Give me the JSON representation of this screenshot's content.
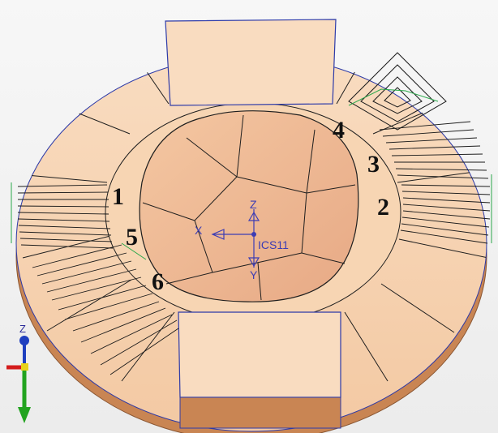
{
  "viewport": {
    "model": "circular-fixture-with-toolpaths",
    "colors": {
      "part_face": "#f6d2ae",
      "part_face_light": "#f9dcc0",
      "part_side": "#c98553",
      "pocket_floor": "#ecb08a",
      "pocket_wall": "#f1c39f",
      "edge": "#1e1e1e",
      "boundary_blue": "#2d3aa8",
      "toolpath": "#1a1a1a",
      "toolpath_marker": "#2aa84a"
    }
  },
  "zone_labels": [
    "1",
    "2",
    "3",
    "4",
    "5",
    "6"
  ],
  "csys": {
    "name": "ICS11",
    "axis_x": "X",
    "axis_y": "Y",
    "axis_z": "Z"
  },
  "triad": {
    "axis_z": "Z",
    "colors": {
      "z": "#1f3fbf",
      "x": "#d41c1c",
      "y": "#22a31f",
      "origin": "#e8d21a"
    }
  }
}
